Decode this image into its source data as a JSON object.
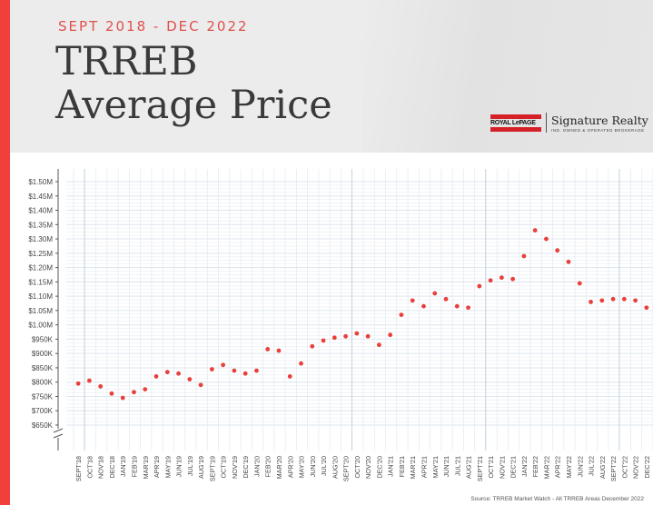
{
  "header": {
    "subtitle": "SEPT 2018 - DEC 2022",
    "title_line1": "TRREB",
    "title_line2": "Average Price",
    "logo_brand": "ROYAL LePAGE",
    "logo_name": "Signature Realty",
    "logo_tagline": "IND. OWNED & OPERATED BROKERAGE"
  },
  "source": "Source: TRREB Market Watch - All TRREB Areas December 2022",
  "colors": {
    "accent": "#f0403c",
    "point": "#e8403a",
    "grid": "#dde6ee"
  },
  "chart_data": {
    "type": "scatter",
    "categories": [
      "SEPT'18",
      "OCT'18",
      "NOV'18",
      "DEC'18",
      "JAN'19",
      "FEB'19",
      "MAR'19",
      "APR'19",
      "MAY'19",
      "JUN'19",
      "JUL'19",
      "AUG'19",
      "SEPT'19",
      "OCT'19",
      "NOV'19",
      "DEC'19",
      "JAN'20",
      "FEB'20",
      "MAR'20",
      "APR'20",
      "MAY'20",
      "JUN'20",
      "JUL'20",
      "AUG'20",
      "SEPT'20",
      "OCT'20",
      "NOV'20",
      "DEC'20",
      "JAN'21",
      "FEB'21",
      "MAR'21",
      "APR'21",
      "MAY'21",
      "JUN'21",
      "JUL'21",
      "AUG'21",
      "SEPT'21",
      "OCT'21",
      "NOV'21",
      "DEC'21",
      "JAN'22",
      "FEB'22",
      "MAR'22",
      "APR'22",
      "MAY'22",
      "JUN'22",
      "JUL'22",
      "AUG'22",
      "SEPT'22",
      "OCT'22",
      "NOV'22",
      "DEC'22"
    ],
    "values": [
      795,
      805,
      785,
      760,
      745,
      765,
      775,
      820,
      835,
      830,
      810,
      790,
      845,
      860,
      840,
      830,
      840,
      915,
      910,
      820,
      865,
      925,
      945,
      955,
      960,
      970,
      960,
      930,
      965,
      1035,
      1085,
      1065,
      1110,
      1090,
      1065,
      1060,
      1135,
      1155,
      1165,
      1160,
      1240,
      1330,
      1300,
      1260,
      1220,
      1145,
      1080,
      1085,
      1090,
      1090,
      1085,
      1060
    ],
    "unit": "thousands of dollars",
    "y_ticks": [
      "$650K",
      "$700K",
      "$750K",
      "$800K",
      "$850K",
      "$900K",
      "$950K",
      "$1.00M",
      "$1.05M",
      "$1.10M",
      "$1.15M",
      "$1.20M",
      "$1.25M",
      "$1.30M",
      "$1.35M",
      "$1.40M",
      "$1.45M",
      "$1.50M"
    ],
    "ylim": [
      650,
      1500
    ],
    "title": "TRREB Average Price",
    "grid": true
  }
}
